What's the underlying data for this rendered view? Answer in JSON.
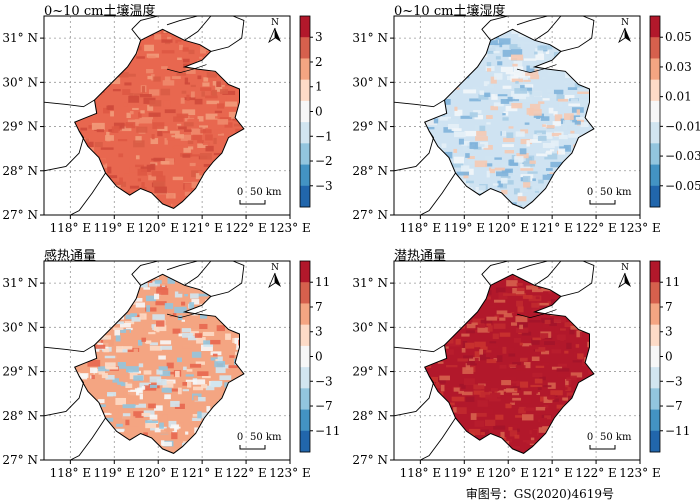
{
  "panels": [
    {
      "title": "0~10 cm土壤温度",
      "colorbar_ticks": [
        "3",
        "2",
        "1",
        "0",
        "−1",
        "−2",
        "−3"
      ],
      "colorbar_colors": [
        "#b2182b",
        "#d6604d",
        "#f4a582",
        "#fddbc7",
        "#f7f7f7",
        "#d1e5f0",
        "#92c5de",
        "#4393c3",
        "#2166ac"
      ],
      "map_palette": [
        "#e8674f",
        "#d95c45",
        "#f08a6c",
        "#de5842",
        "#cf4a3b",
        "#f29b7a"
      ],
      "scale_label": "50 km"
    },
    {
      "title": "0~10 cm土壤湿度",
      "colorbar_ticks": [
        "0.05",
        "0.03",
        "0.01",
        "−0.01",
        "−0.03",
        "−0.05"
      ],
      "colorbar_colors": [
        "#b2182b",
        "#d6604d",
        "#f4a582",
        "#fddbc7",
        "#f7f7f7",
        "#d1e5f0",
        "#92c5de",
        "#4393c3",
        "#2166ac"
      ],
      "map_palette": [
        "#cfe3f2",
        "#a9cde6",
        "#e4eff7",
        "#7fb3da",
        "#f2f6fa",
        "#f5c9b3"
      ],
      "scale_label": "50 km"
    },
    {
      "title": "感热通量",
      "colorbar_ticks": [
        "11",
        "7",
        "3",
        "0",
        "−3",
        "−7",
        "−11"
      ],
      "colorbar_colors": [
        "#b2182b",
        "#d6604d",
        "#f4a582",
        "#fddbc7",
        "#f7f7f7",
        "#d1e5f0",
        "#92c5de",
        "#4393c3",
        "#2166ac"
      ],
      "map_palette": [
        "#f4a582",
        "#d1e5f0",
        "#fddbc7",
        "#92c5de",
        "#e8674f",
        "#f7f7f7"
      ],
      "scale_label": "50 km"
    },
    {
      "title": "潜热通量",
      "colorbar_ticks": [
        "11",
        "7",
        "3",
        "0",
        "−3",
        "−7",
        "−11"
      ],
      "colorbar_colors": [
        "#b2182b",
        "#d6604d",
        "#f4a582",
        "#fddbc7",
        "#f7f7f7",
        "#d1e5f0",
        "#92c5de",
        "#4393c3",
        "#2166ac"
      ],
      "map_palette": [
        "#b2182b",
        "#c12a2f",
        "#a3142a",
        "#d6604d",
        "#b81e2d",
        "#c9332f"
      ],
      "scale_label": "50 km"
    }
  ],
  "lat_labels": [
    "31° N",
    "30° N",
    "29° N",
    "28° N",
    "27° N"
  ],
  "lon_labels": [
    "118° E",
    "119° E",
    "120° E",
    "121° E",
    "122° E",
    "123° E"
  ],
  "scale_zero": "0",
  "north_label": "N",
  "approval_number": "审图号：GS(2020)4619号"
}
